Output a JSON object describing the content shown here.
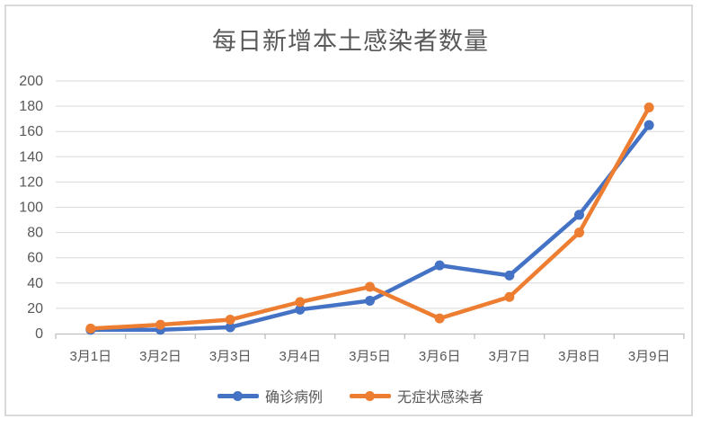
{
  "chart_data": {
    "type": "line",
    "title": "每日新增本土感染者数量",
    "categories": [
      "3月1日",
      "3月2日",
      "3月3日",
      "3月4日",
      "3月5日",
      "3月6日",
      "3月7日",
      "3月8日",
      "3月9日"
    ],
    "series": [
      {
        "name": "确诊病例",
        "color": "#4472C4",
        "values": [
          3,
          3,
          5,
          19,
          26,
          54,
          46,
          94,
          165
        ]
      },
      {
        "name": "无症状感染者",
        "color": "#ED7D31",
        "values": [
          4,
          7,
          11,
          25,
          37,
          12,
          29,
          80,
          179
        ]
      }
    ],
    "ylim": [
      0,
      200
    ],
    "y_tick_step": 20,
    "y_ticks": [
      0,
      20,
      40,
      60,
      80,
      100,
      120,
      140,
      160,
      180,
      200
    ],
    "grid": true,
    "legend_position": "bottom",
    "text_color": "#595959",
    "grid_color": "#D9D9D9",
    "axis_color": "#BFBFBF",
    "background": "#FFFFFF",
    "frame_border_color": "#D9D9D9"
  }
}
